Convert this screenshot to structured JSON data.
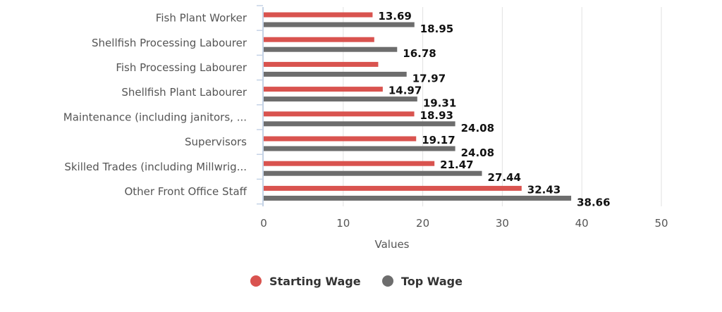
{
  "chart_data": {
    "type": "bar",
    "orientation": "horizontal",
    "categories": [
      "Fish Plant Worker",
      "Shellfish Processing Labourer",
      "Fish Processing Labourer",
      "Shellfish Plant Labourer",
      "Maintenance (including janitors, ...",
      "Supervisors",
      "Skilled Trades (including Millwrig...",
      "Other Front Office Staff"
    ],
    "series": [
      {
        "name": "Starting Wage",
        "color": "#d9534f",
        "values": [
          13.69,
          13.9,
          14.4,
          14.97,
          18.93,
          19.17,
          21.47,
          32.43
        ],
        "labels": [
          "13.69",
          null,
          null,
          "14.97",
          "18.93",
          "19.17",
          "21.47",
          "32.43"
        ]
      },
      {
        "name": "Top Wage",
        "color": "#6d6d6d",
        "values": [
          18.95,
          16.78,
          17.97,
          19.31,
          24.08,
          24.08,
          27.44,
          38.66
        ],
        "labels": [
          "18.95",
          "16.78",
          "17.97",
          "19.31",
          "24.08",
          "24.08",
          "27.44",
          "38.66"
        ]
      }
    ],
    "xlabel": "Values",
    "xlim": [
      0,
      50
    ],
    "xticks": [
      0,
      10,
      20,
      30,
      40,
      50
    ],
    "grid": true,
    "legend_position": "bottom"
  }
}
